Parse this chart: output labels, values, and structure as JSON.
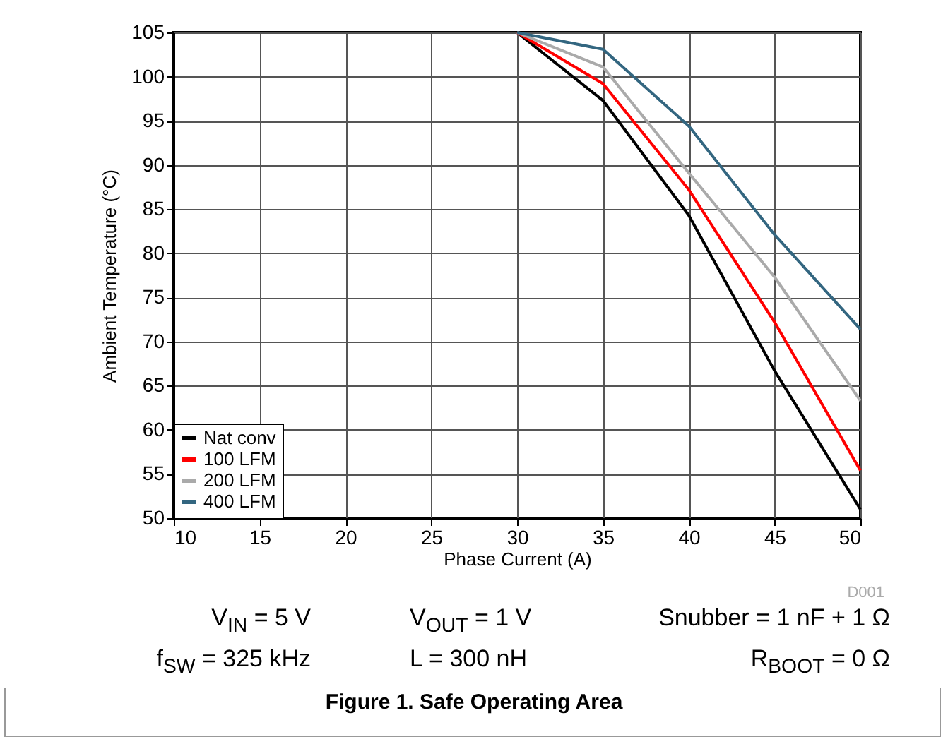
{
  "chart_data": {
    "type": "line",
    "title": "Figure 1. Safe Operating Area",
    "xlabel": "Phase Current (A)",
    "ylabel": "Ambient Temperature (°C)",
    "x": [
      30,
      35,
      40,
      45,
      50
    ],
    "series": [
      {
        "name": "Nat conv",
        "color": "#000000",
        "values": [
          105,
          97.3,
          84.3,
          66.7,
          51
        ]
      },
      {
        "name": "100 LFM",
        "color": "#ff0000",
        "values": [
          105,
          99.2,
          87.2,
          72.2,
          55.4
        ]
      },
      {
        "name": "200 LFM",
        "color": "#aaaaaa",
        "values": [
          105,
          101.1,
          89.1,
          77.3,
          63.3
        ]
      },
      {
        "name": "400 LFM",
        "color": "#336680",
        "values": [
          105,
          103.1,
          94.4,
          82.1,
          71.4
        ]
      }
    ],
    "xlim": [
      10,
      50
    ],
    "xticks": [
      10,
      15,
      20,
      25,
      30,
      35,
      40,
      45,
      50
    ],
    "ylim": [
      50,
      105
    ],
    "yticks": [
      50,
      55,
      60,
      65,
      70,
      75,
      80,
      85,
      90,
      95,
      100,
      105
    ],
    "grid": true,
    "legend": "bottom left",
    "marker": "none",
    "line_style": "solid",
    "annotations": [
      "D001",
      "V$_{IN}$ = 5 V",
      "V$_{OUT}$ = 1 V",
      "Snubber = 1 nF + 1 Ω",
      "f$_{SW}$ = 325 kHz",
      "L = 300 nH",
      "R$_{BOOT}$ = 0 Ω"
    ]
  }
}
